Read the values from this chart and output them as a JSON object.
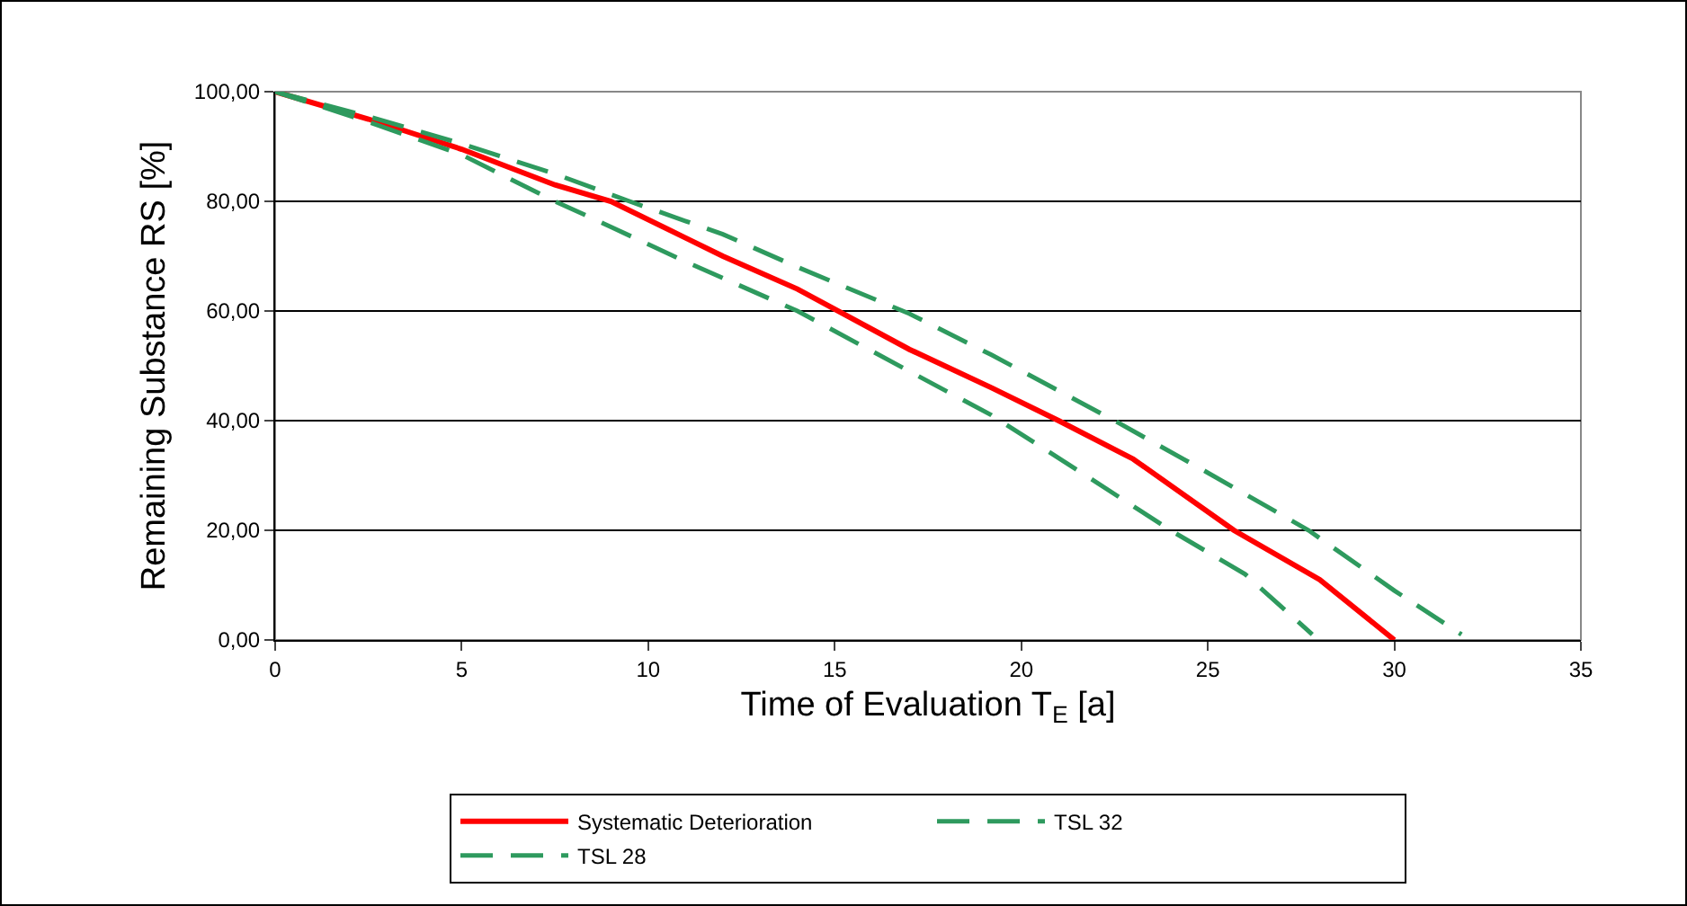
{
  "chart_data": {
    "type": "line",
    "xlabel": "Time of Evaluation T$_{E}$ [a]",
    "ylabel": "Remaining Substance RS [%]",
    "xlim": [
      0,
      35
    ],
    "xticks": [
      0,
      5,
      10,
      15,
      20,
      25,
      30,
      35
    ],
    "ylim": [
      0,
      100
    ],
    "yticks": [
      {
        "value": 0,
        "label": "0,00"
      },
      {
        "value": 20,
        "label": "20,00"
      },
      {
        "value": 40,
        "label": "40,00"
      },
      {
        "value": 60,
        "label": "60,00"
      },
      {
        "value": 80,
        "label": "80,00"
      },
      {
        "value": 100,
        "label": "100,00"
      }
    ],
    "grid": "y",
    "legend": "bottom",
    "marker": "none",
    "series": [
      {
        "name": "Systematic Deterioration",
        "color": "#ff0000",
        "line_style": "solid",
        "x": [
          0,
          2.5,
          5,
          7.5,
          9,
          12,
          14,
          17,
          19.2,
          21,
          23,
          25.7,
          28,
          30
        ],
        "values": [
          100,
          95,
          89.5,
          83,
          80,
          70,
          64,
          53,
          46,
          40,
          33,
          20,
          11,
          0
        ]
      },
      {
        "name": "TSL 32",
        "color": "#2e9a5e",
        "line_style": "dashed",
        "x": [
          0,
          2.5,
          5,
          7.5,
          9.5,
          12,
          14,
          17,
          19.2,
          22.5,
          25,
          27.7,
          30,
          31.8
        ],
        "values": [
          100,
          95.5,
          90.5,
          85,
          80,
          74,
          68,
          59.5,
          52,
          40,
          30.5,
          20,
          9,
          1
        ]
      },
      {
        "name": "TSL 28",
        "color": "#2e9a5e",
        "line_style": "dashed",
        "x": [
          0,
          2.5,
          5,
          7.5,
          8.6,
          11,
          14,
          17,
          19.2,
          21.5,
          24,
          26,
          27.8
        ],
        "values": [
          100,
          94.5,
          88.5,
          80,
          76.6,
          69,
          60,
          49,
          41,
          31,
          20,
          12,
          1
        ]
      }
    ]
  }
}
